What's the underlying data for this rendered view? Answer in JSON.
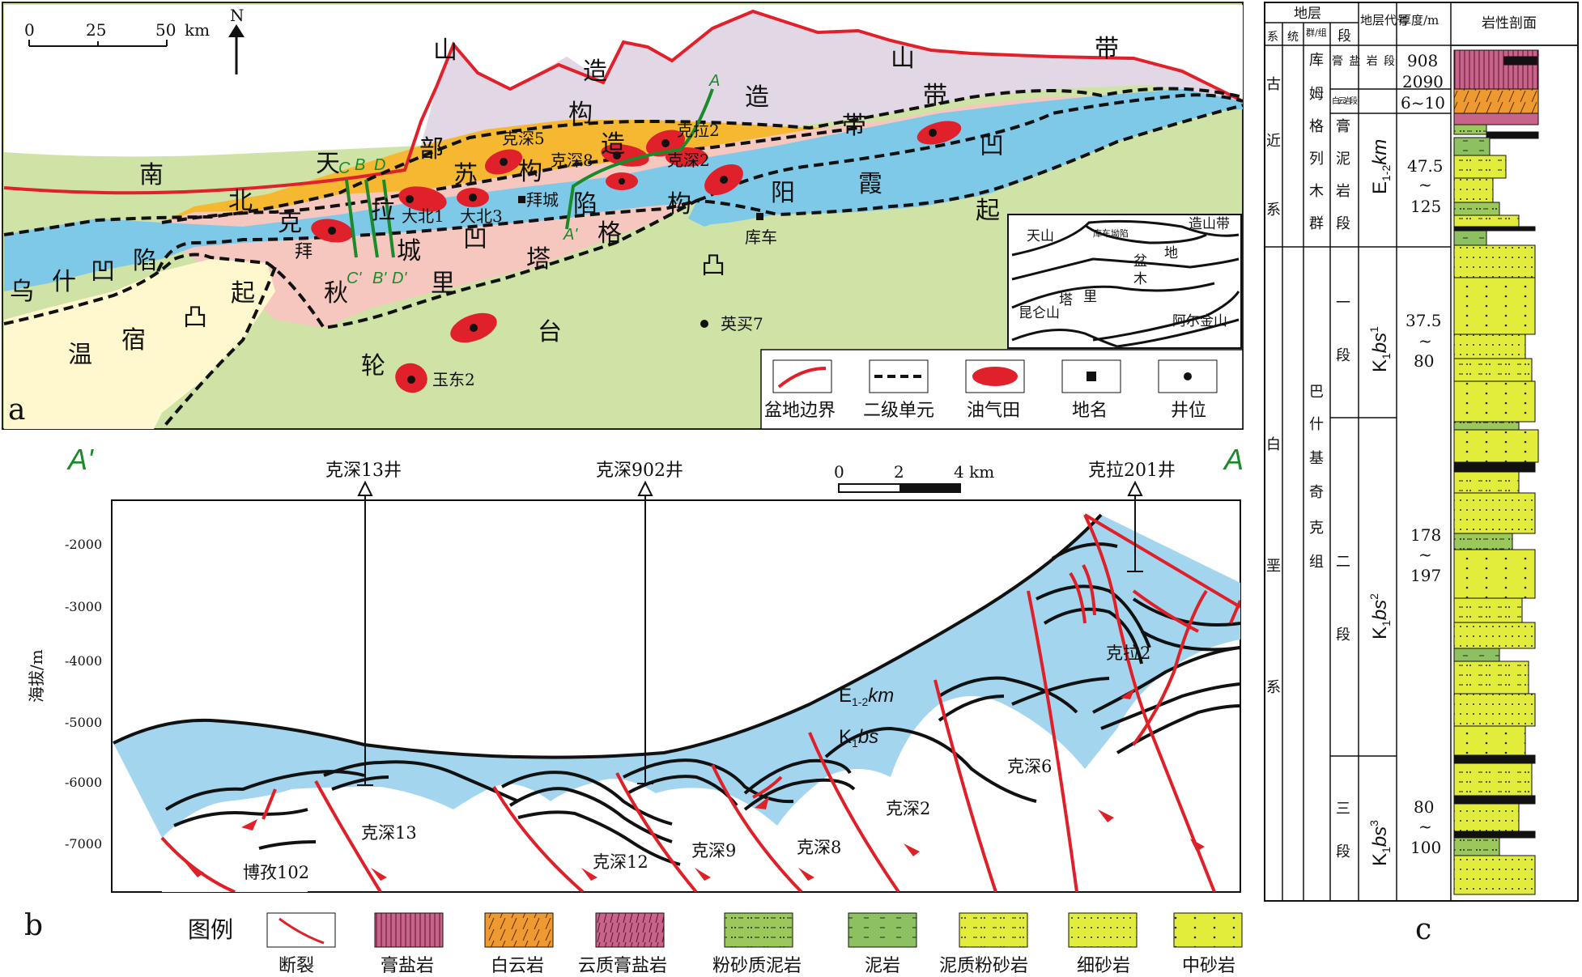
{
  "panel_a": {
    "label": "a",
    "scale": {
      "t0": "0",
      "t1": "25",
      "t2": "50",
      "unit": "km"
    },
    "north": "N",
    "big_labels": [
      "山",
      "造",
      "山",
      "带",
      "构",
      "造",
      "带",
      "南",
      "天",
      "北",
      "部",
      "苏",
      "构",
      "造",
      "带",
      "克",
      "拉",
      "陷",
      "凹",
      "霞",
      "阳",
      "起",
      "乌",
      "什",
      "凹",
      "陷",
      "拜",
      "城",
      "凹",
      "塔",
      "格",
      "构",
      "凸",
      "起",
      "温",
      "宿",
      "凸",
      "秋",
      "里",
      "台",
      "轮"
    ],
    "places": {
      "kl2": "克拉2",
      "ks5": "克深5",
      "ks8": "克深8",
      "ks2": "克深2",
      "dabei1": "大北1",
      "dabei3": "大北3",
      "baicheng": "拜城",
      "kuche": "库车",
      "yingmai7": "英买7",
      "yudong2": "玉东2"
    },
    "sections": {
      "A": "A",
      "Ap": "A'",
      "B": "B",
      "Bp": "B'",
      "C": "C",
      "Cp": "C'",
      "D": "D",
      "Dp": "D'"
    },
    "inset": {
      "tianshan": "天山",
      "kuche_dep": "库车坳陷",
      "zaoshan": "造山带",
      "basin": "盆",
      "di": "地",
      "mu": "木",
      "ta": "塔",
      "li": "里",
      "kunlun": "昆仑山",
      "altun": "阿尔金山"
    },
    "legend": [
      "盆地边界",
      "二级单元",
      "油气田",
      "地名",
      "井位"
    ]
  },
  "panel_b": {
    "label": "b",
    "A_left": "A'",
    "A_right": "A",
    "wells": [
      "克深13井",
      "克深902井",
      "克拉201井"
    ],
    "scale": {
      "t0": "0",
      "t1": "2",
      "t2": "4 km"
    },
    "y_axis_title": "海拔/m",
    "y_ticks": [
      "-2000",
      "-3000",
      "-4000",
      "-5000",
      "-6000",
      "-7000"
    ],
    "units": {
      "e": "E",
      "e_sub": "1-2",
      "e_it": "km",
      "k": "K",
      "k_sub": "1",
      "k_it": "bs"
    },
    "structures": [
      "博孜102",
      "克深13",
      "克深12",
      "克深9",
      "克深8",
      "克深2",
      "克深6",
      "克拉2"
    ],
    "legend_title": "图例",
    "legend": [
      "断裂",
      "膏盐岩",
      "白云岩",
      "云质膏盐岩",
      "粉砂质泥岩",
      "泥岩",
      "泥质粉砂岩",
      "细砂岩",
      "中砂岩"
    ]
  },
  "panel_c": {
    "label": "c",
    "headers": {
      "dizeng": "地层",
      "xi": "系",
      "tong": "统",
      "qun": "群/组",
      "duan": "段",
      "code": "地层代号",
      "thick": "厚度/m",
      "litho": "岩性剖面"
    },
    "systems": [
      "古",
      "近",
      "系",
      "白",
      "垩",
      "系"
    ],
    "groups": [
      "库",
      "姆",
      "格",
      "列",
      "木",
      "群",
      "巴",
      "什",
      "基",
      "奇",
      "克",
      "组"
    ],
    "members": {
      "m1": "膏盐岩段",
      "m2": "白云岩段",
      "m3": [
        "膏",
        "泥",
        "岩",
        "段"
      ],
      "m4": [
        "一",
        "段"
      ],
      "m5": [
        "二",
        "段"
      ],
      "m6": [
        "三",
        "段"
      ]
    },
    "codes": {
      "e": "E",
      "e_sub": "1-2",
      "e_it": "km",
      "k": "K",
      "k_sub": "1",
      "k_it": "bs",
      "s1": "1",
      "s2": "2",
      "s3": "3"
    },
    "thickness": {
      "t1a": "908",
      "t1b": "2090",
      "t2": "6~10",
      "t3a": "47.5",
      "t3b": "125",
      "t4a": "37.5",
      "t4b": "80",
      "t5a": "178",
      "t5b": "197",
      "t6a": "80",
      "t6b": "100",
      "tilde": "~"
    }
  },
  "colors": {
    "blue": "#7ec8e8",
    "pink": "#f6c7bf",
    "orange": "#f5b830",
    "lilac": "#e2d7e4",
    "green": "#cfe3a6",
    "cream": "#fff8cf",
    "red": "#e0202a",
    "fault": "#e02028",
    "yellow": "#e2ec3a"
  }
}
